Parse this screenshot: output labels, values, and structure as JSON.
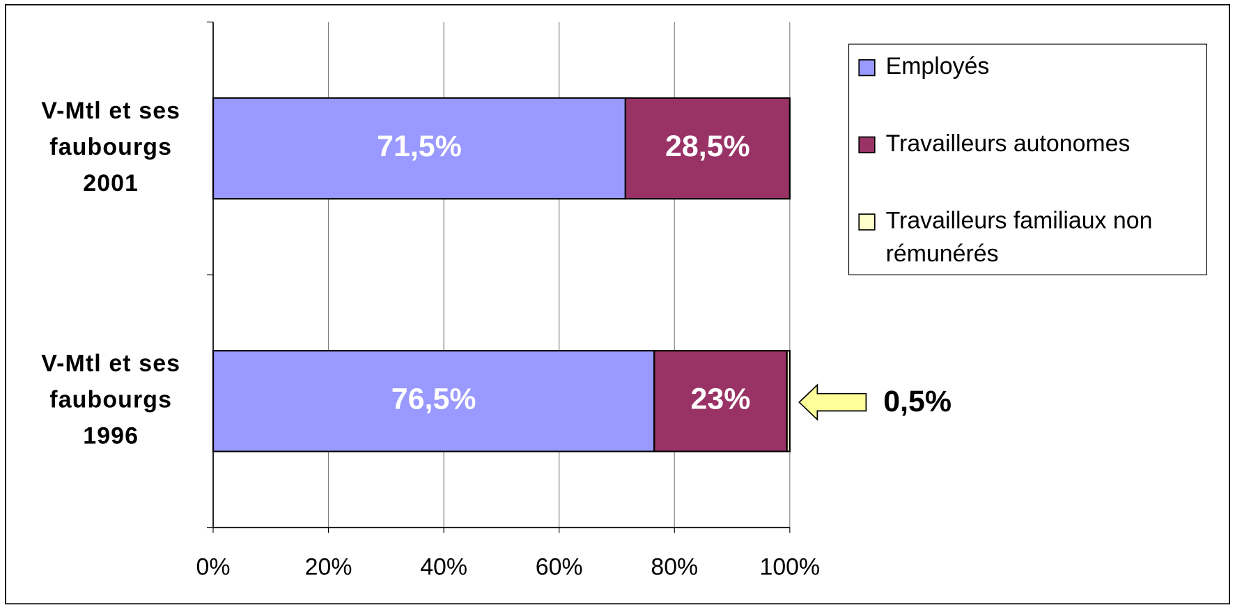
{
  "chart_data": {
    "type": "stacked-bar-horizontal",
    "categories": [
      "V-Mtl et ses faubourgs 2001",
      "V-Mtl et ses faubourgs 1996"
    ],
    "series": [
      {
        "name": "Employés",
        "color": "#9999ff",
        "values": [
          71.5,
          76.5
        ],
        "value_labels": [
          "71,5%",
          "76,5%"
        ]
      },
      {
        "name": "Travailleurs autonomes",
        "color": "#993366",
        "values": [
          28.5,
          23
        ],
        "value_labels": [
          "28,5%",
          "23%"
        ]
      },
      {
        "name": "Travailleurs familiaux non rémunérés",
        "color": "#ffffcc",
        "values": [
          0,
          0.5
        ],
        "value_labels": [
          null,
          "0,5%"
        ]
      }
    ],
    "xlim": [
      0,
      100
    ],
    "xticks": [
      {
        "value": 0,
        "label": "0%"
      },
      {
        "value": 20,
        "label": "20%"
      },
      {
        "value": 40,
        "label": "40%"
      },
      {
        "value": 60,
        "label": "60%"
      },
      {
        "value": 80,
        "label": "80%"
      },
      {
        "value": 100,
        "label": "100%"
      }
    ],
    "grid": true,
    "legend": "top-right"
  }
}
